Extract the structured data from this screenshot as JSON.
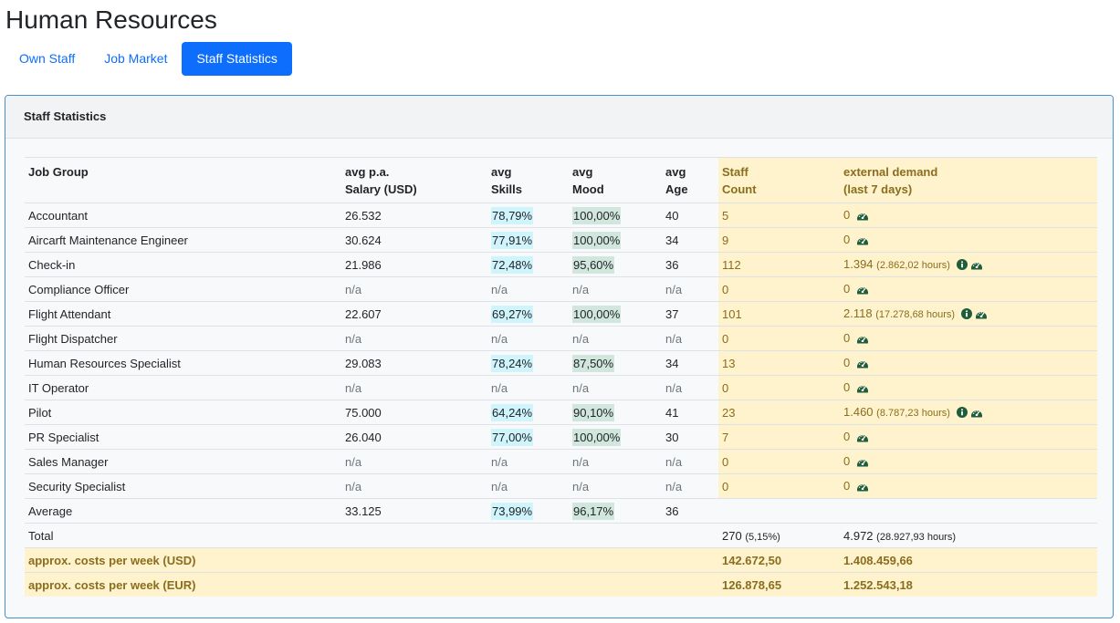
{
  "page_title": "Human Resources",
  "tabs": [
    {
      "label": "Own Staff",
      "active": false
    },
    {
      "label": "Job Market",
      "active": false
    },
    {
      "label": "Staff Statistics",
      "active": true
    }
  ],
  "card_title": "Staff Statistics",
  "columns": {
    "job_group": "Job Group",
    "salary_l1": "avg p.a.",
    "salary_l2": "Salary (USD)",
    "skills_l1": "avg",
    "skills_l2": "Skills",
    "mood_l1": "avg",
    "mood_l2": "Mood",
    "age_l1": "avg",
    "age_l2": "Age",
    "count_l1": "Staff",
    "count_l2": "Count",
    "demand_l1": "external demand",
    "demand_l2": "(last 7 days)"
  },
  "rows": [
    {
      "group": "Accountant",
      "salary": "26.532",
      "skills": "78,79%",
      "mood": "100,00%",
      "age": "40",
      "count": "5",
      "demand": "0",
      "hours": "",
      "info": false
    },
    {
      "group": "Aircarft Maintenance Engineer",
      "salary": "30.624",
      "skills": "77,91%",
      "mood": "100,00%",
      "age": "34",
      "count": "9",
      "demand": "0",
      "hours": "",
      "info": false
    },
    {
      "group": "Check-in",
      "salary": "21.986",
      "skills": "72,48%",
      "mood": "95,60%",
      "age": "36",
      "count": "112",
      "demand": "1.394",
      "hours": "(2.862,02 hours)",
      "info": true
    },
    {
      "group": "Compliance Officer",
      "salary": "n/a",
      "skills": "n/a",
      "mood": "n/a",
      "age": "n/a",
      "count": "0",
      "demand": "0",
      "hours": "",
      "info": false
    },
    {
      "group": "Flight Attendant",
      "salary": "22.607",
      "skills": "69,27%",
      "mood": "100,00%",
      "age": "37",
      "count": "101",
      "demand": "2.118",
      "hours": "(17.278,68 hours)",
      "info": true
    },
    {
      "group": "Flight Dispatcher",
      "salary": "n/a",
      "skills": "n/a",
      "mood": "n/a",
      "age": "n/a",
      "count": "0",
      "demand": "0",
      "hours": "",
      "info": false
    },
    {
      "group": "Human Resources Specialist",
      "salary": "29.083",
      "skills": "78,24%",
      "mood": "87,50%",
      "age": "34",
      "count": "13",
      "demand": "0",
      "hours": "",
      "info": false
    },
    {
      "group": "IT Operator",
      "salary": "n/a",
      "skills": "n/a",
      "mood": "n/a",
      "age": "n/a",
      "count": "0",
      "demand": "0",
      "hours": "",
      "info": false
    },
    {
      "group": "Pilot",
      "salary": "75.000",
      "skills": "64,24%",
      "mood": "90,10%",
      "age": "41",
      "count": "23",
      "demand": "1.460",
      "hours": "(8.787,23 hours)",
      "info": true
    },
    {
      "group": "PR Specialist",
      "salary": "26.040",
      "skills": "77,00%",
      "mood": "100,00%",
      "age": "30",
      "count": "7",
      "demand": "0",
      "hours": "",
      "info": false
    },
    {
      "group": "Sales Manager",
      "salary": "n/a",
      "skills": "n/a",
      "mood": "n/a",
      "age": "n/a",
      "count": "0",
      "demand": "0",
      "hours": "",
      "info": false
    },
    {
      "group": "Security Specialist",
      "salary": "n/a",
      "skills": "n/a",
      "mood": "n/a",
      "age": "n/a",
      "count": "0",
      "demand": "0",
      "hours": "",
      "info": false
    }
  ],
  "average": {
    "label": "Average",
    "salary": "33.125",
    "skills": "73,99%",
    "mood": "96,17%",
    "age": "36"
  },
  "total": {
    "label": "Total",
    "count": "270",
    "count_pct": "(5,15%)",
    "demand": "4.972",
    "hours": "(28.927,93 hours)"
  },
  "costs": [
    {
      "label": "approx. costs per week (USD)",
      "staff": "142.672,50",
      "demand": "1.408.459,66"
    },
    {
      "label": "approx. costs per week (EUR)",
      "staff": "126.878,65",
      "demand": "1.252.543,18"
    }
  ],
  "colors": {
    "accent": "#0d6efd",
    "highlight": "#fff3cd",
    "skills_bg": "#cff4fc",
    "mood_bg": "#d1e7dd",
    "icon": "#1e5c3a"
  },
  "icons": {
    "info": "info-circle-icon",
    "gauge": "tachometer-icon"
  }
}
